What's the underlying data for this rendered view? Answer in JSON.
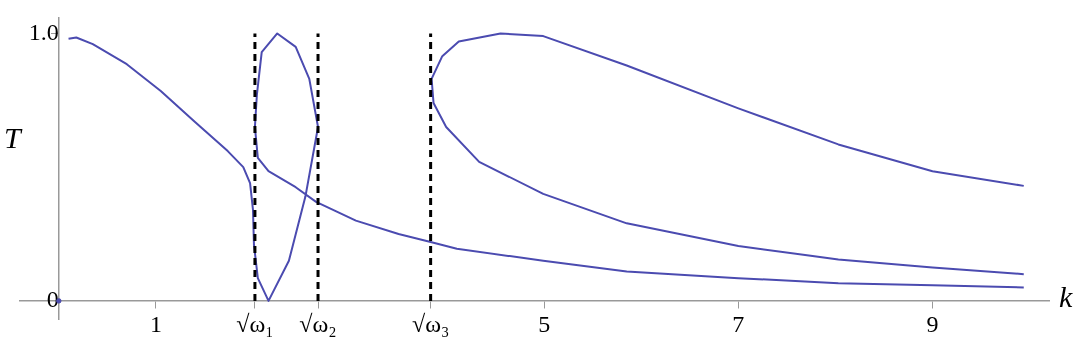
{
  "chart_data": {
    "type": "line",
    "xlabel": "k",
    "ylabel": "T",
    "xlim": [
      -0.4,
      10.2
    ],
    "ylim": [
      -0.07,
      1.06
    ],
    "xticks": [
      1,
      {
        "value": 2.02,
        "label": "√ω₁"
      },
      {
        "value": 2.67,
        "label": "√ω₂"
      },
      {
        "value": 3.83,
        "label": "√ω₃"
      },
      5,
      7,
      9
    ],
    "yticks": [
      0,
      {
        "value": 1,
        "label": "1.0"
      }
    ],
    "grid": false,
    "legend": false,
    "ref_lines": [
      {
        "axis": "x",
        "value": 2.02,
        "color": "#000000",
        "line_style": "dashed"
      },
      {
        "axis": "x",
        "value": 2.67,
        "color": "#000000",
        "line_style": "dashed"
      },
      {
        "axis": "x",
        "value": 3.83,
        "color": "#000000",
        "line_style": "dashed"
      }
    ],
    "series": [
      {
        "color": "#4b4bb0",
        "marker": "none",
        "x": [
          0.1,
          0.18,
          0.35,
          0.7,
          1.05,
          1.4,
          1.74,
          1.9,
          1.97,
          2.0,
          2.01,
          2.05,
          2.16,
          2.37,
          2.54,
          2.67,
          2.58,
          2.44,
          2.25,
          2.09,
          2.04,
          2.02,
          2.05,
          2.16,
          2.44,
          2.65,
          3.06,
          3.5,
          3.83,
          4.1,
          4.99,
          5.85,
          7,
          8.03,
          9,
          9.94
        ],
        "values": [
          0.98,
          0.985,
          0.96,
          0.885,
          0.785,
          0.67,
          0.56,
          0.5,
          0.44,
          0.34,
          0.21,
          0.085,
          0,
          0.15,
          0.39,
          0.65,
          0.83,
          0.95,
          1.0,
          0.93,
          0.77,
          0.65,
          0.535,
          0.485,
          0.425,
          0.37,
          0.3,
          0.25,
          0.22,
          0.195,
          0.15,
          0.11,
          0.085,
          0.066,
          0.058,
          0.05
        ]
      },
      {
        "color": "#4b4bb0",
        "marker": "none",
        "x": [
          9.94,
          9,
          8.03,
          7,
          5.85,
          4.99,
          4.55,
          4.12,
          3.95,
          3.84,
          3.86,
          3.99,
          4.33,
          4.99,
          5.85,
          7,
          8.03,
          9,
          9.94
        ],
        "values": [
          0.43,
          0.485,
          0.585,
          0.72,
          0.88,
          0.99,
          1.0,
          0.97,
          0.915,
          0.83,
          0.74,
          0.65,
          0.52,
          0.4,
          0.29,
          0.205,
          0.155,
          0.125,
          0.1
        ]
      },
      {
        "type": "scatter",
        "marker": "circle",
        "color": "#4b4bb0",
        "x": [
          0
        ],
        "values": [
          0
        ]
      }
    ]
  }
}
